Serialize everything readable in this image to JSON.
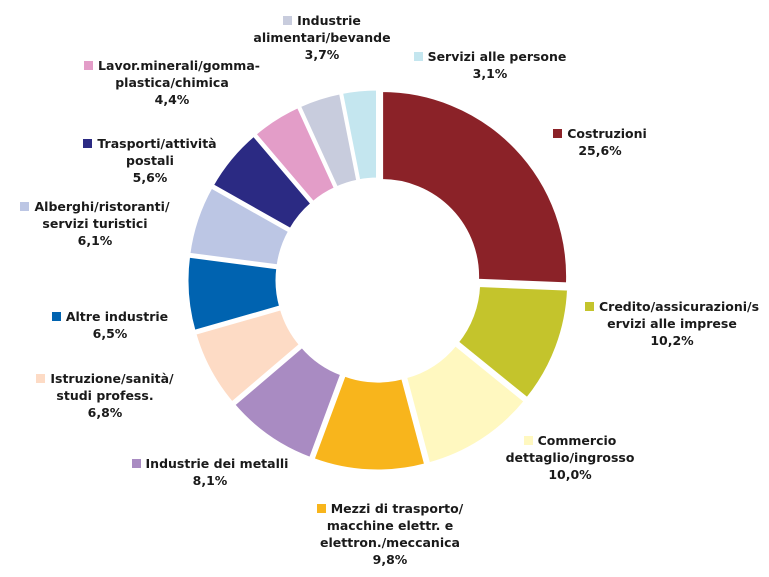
{
  "chart_data": {
    "type": "donut",
    "categories": [
      "Costruzioni",
      "Credito/assicurazioni/servizi alle imprese",
      "Commercio dettaglio/ingrosso",
      "Mezzi di trasporto/ macchine elettr. e elettron./meccanica",
      "Industrie dei metalli",
      "Istruzione/sanità/ studi profess.",
      "Altre industrie",
      "Alberghi/ristoranti/ servizi turistici",
      "Trasporti/attività postali",
      "Lavor.minerali/gomma-plastica/chimica",
      "Industrie alimentari/bevande",
      "Servizi alle persone"
    ],
    "values": [
      25.6,
      10.2,
      10.0,
      9.8,
      8.1,
      6.8,
      6.5,
      6.1,
      5.6,
      4.4,
      3.7,
      3.1
    ],
    "value_labels": [
      "25,6%",
      "10,2%",
      "10,0%",
      "9,8%",
      "8,1%",
      "6,8%",
      "6,5%",
      "6,1%",
      "5,6%",
      "4,4%",
      "3,7%",
      "3,1%"
    ],
    "colors": [
      "#8b2228",
      "#c4c42c",
      "#fff8c0",
      "#f8b51c",
      "#a98bc2",
      "#fddbc5",
      "#0063b0",
      "#bcc6e4",
      "#2b2a83",
      "#e39dc8",
      "#c8ccdd",
      "#c4e6ef"
    ]
  }
}
